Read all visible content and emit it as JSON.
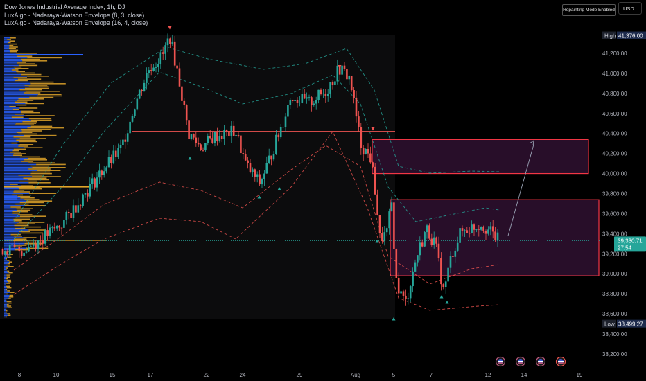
{
  "legend": {
    "title": "Dow Jones Industrial Average Index, 1h, DJ",
    "indicator1": "LuxAlgo - Nadaraya-Watson Envelope (8, 3, close)",
    "indicator2": "LuxAlgo - Nadaraya-Watson Envelope (16, 4, close)"
  },
  "toolbar": {
    "repainting_label": "Repainting Mode Enabled",
    "currency_label": "USD"
  },
  "price_tags": {
    "high_label": "High",
    "high_value": "41,376.00",
    "low_label": "Low",
    "low_value": "38,499.27",
    "last_value": "39,330.71",
    "countdown": "27:54"
  },
  "colors": {
    "background": "#000000",
    "up": "#26a69a",
    "down": "#ef5350",
    "resistance_line": "#ef5350",
    "zone_border": "#f23645",
    "zone_fill": "#2a0f2b",
    "profile_blue": "#2962ff",
    "profile_yellow": "#e0a52a",
    "arrow": "#9aa3b5"
  },
  "chart_data": {
    "type": "candlestick",
    "title": "Dow Jones Industrial Average Index, 1h, DJ",
    "y_axis_ticks": [
      "41,200.00",
      "41,000.00",
      "40,800.00",
      "40,600.00",
      "40,400.00",
      "40,200.00",
      "40,000.00",
      "39,800.00",
      "39,600.00",
      "39,400.00",
      "39,200.00",
      "39,000.00",
      "38,800.00",
      "38,600.00",
      "38,400.00",
      "38,200.00"
    ],
    "x_axis_ticks": [
      "8",
      "10",
      "15",
      "17",
      "22",
      "24",
      "29",
      "Aug",
      "5",
      "7",
      "12",
      "14",
      "19"
    ],
    "ylim": [
      38150,
      41420
    ],
    "high": 41376.0,
    "low": 38499.27,
    "last": 39330.71,
    "resistance_level": 40420,
    "zones": [
      {
        "name": "upper zone",
        "from": 40000,
        "to": 40340
      },
      {
        "name": "lower zone",
        "from": 38980,
        "to": 39740
      }
    ],
    "projection": {
      "from": 39380,
      "to": 40290
    }
  }
}
